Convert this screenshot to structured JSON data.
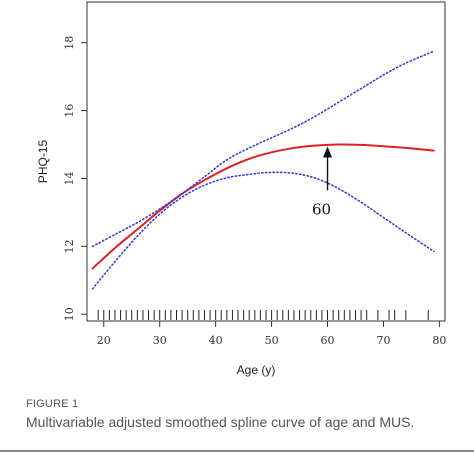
{
  "chart_data": {
    "type": "line",
    "xlabel": "Age (y)",
    "ylabel": "PHQ-15",
    "xlim": [
      17,
      81
    ],
    "ylim": [
      9.8,
      19.2
    ],
    "x_ticks": [
      20,
      30,
      40,
      50,
      60,
      70,
      80
    ],
    "y_ticks": [
      10,
      12,
      14,
      16,
      18
    ],
    "grid": false,
    "legend": "none",
    "series": [
      {
        "role": "estimate",
        "color": "#dd2222",
        "style": "solid",
        "x": [
          18,
          22,
          26,
          30,
          34,
          38,
          42,
          46,
          50,
          54,
          58,
          62,
          66,
          70,
          74,
          79
        ],
        "y": [
          11.35,
          11.95,
          12.5,
          13.05,
          13.55,
          13.95,
          14.3,
          14.58,
          14.77,
          14.9,
          14.97,
          15.0,
          14.99,
          14.95,
          14.9,
          14.82
        ]
      },
      {
        "role": "upper-ci",
        "color": "#3b3bd6",
        "style": "dotted",
        "x": [
          18,
          22,
          26,
          30,
          34,
          38,
          42,
          46,
          50,
          54,
          58,
          62,
          66,
          70,
          74,
          79
        ],
        "y": [
          12.0,
          12.35,
          12.7,
          13.1,
          13.55,
          14.05,
          14.55,
          14.9,
          15.2,
          15.5,
          15.85,
          16.25,
          16.65,
          17.05,
          17.4,
          17.75
        ]
      },
      {
        "role": "lower-ci",
        "color": "#3b3bd6",
        "style": "dotted",
        "x": [
          18,
          22,
          26,
          30,
          34,
          38,
          42,
          46,
          50,
          54,
          58,
          62,
          66,
          70,
          74,
          79
        ],
        "y": [
          10.75,
          11.55,
          12.3,
          12.95,
          13.45,
          13.8,
          14.02,
          14.12,
          14.18,
          14.15,
          14.0,
          13.7,
          13.3,
          12.85,
          12.4,
          11.85
        ]
      }
    ],
    "rug_x": [
      19,
      20,
      21,
      22,
      23,
      24,
      25,
      26,
      27,
      28,
      29,
      30,
      31,
      32,
      33,
      34,
      35,
      36,
      37,
      38,
      39,
      40,
      41,
      42,
      43,
      44,
      45,
      46,
      47,
      48,
      49,
      50,
      51,
      52,
      53,
      54,
      55,
      56,
      57,
      58,
      59,
      60,
      61,
      62,
      63,
      64,
      65,
      66,
      67,
      69,
      71,
      72,
      74,
      78
    ],
    "annotation": {
      "text": "60",
      "x": 60,
      "arrow_tip_y": 15.0,
      "arrow_tail_y": 13.65
    }
  },
  "caption": {
    "label": "FIGURE 1",
    "text": "Multivariable adjusted smoothed spline curve of age and MUS."
  }
}
